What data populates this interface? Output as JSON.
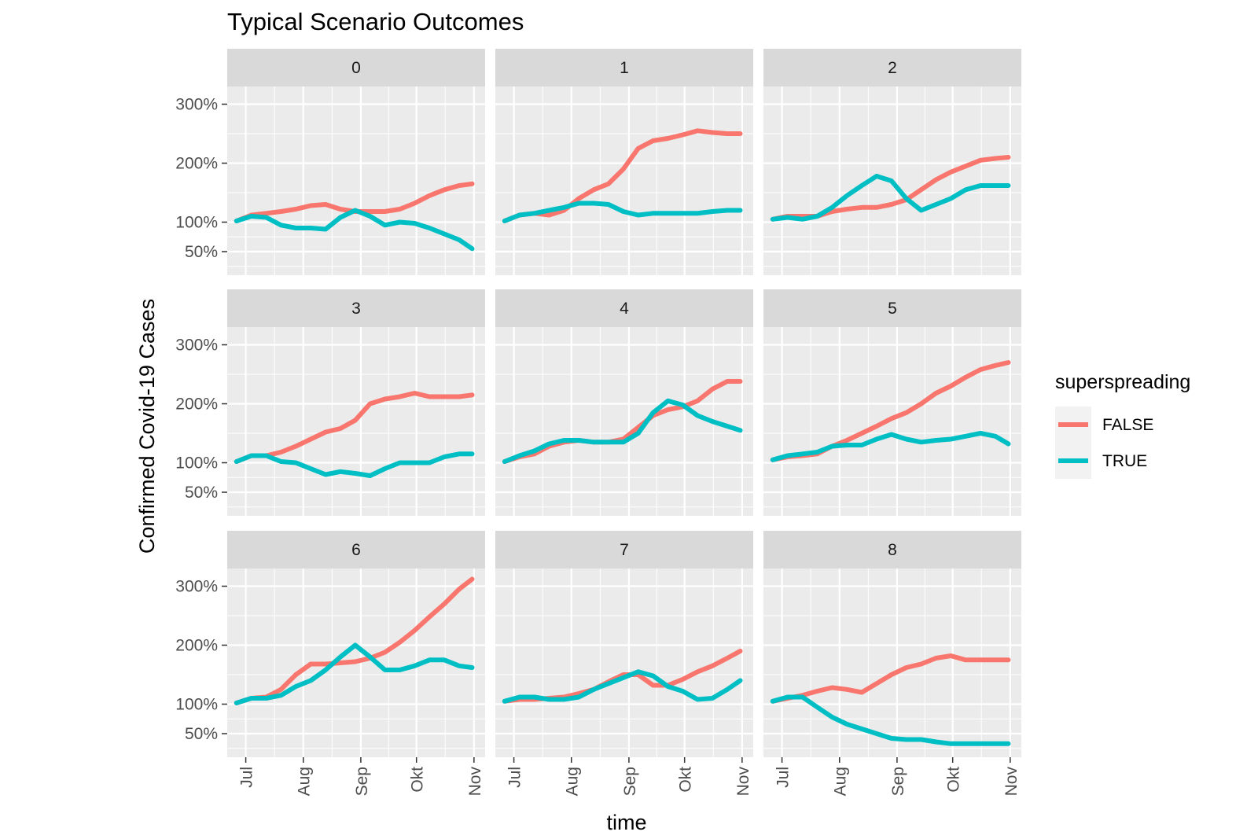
{
  "chart_data": {
    "type": "line",
    "title": "Typical Scenario Outcomes",
    "xlabel": "time",
    "ylabel": "Confirmed Covid-19 Cases",
    "facet_layout": "3x3",
    "x_ticks": [
      "Jul",
      "Aug",
      "Sep",
      "Okt",
      "Nov"
    ],
    "x_tick_dates": [
      "2020-07-01",
      "2020-08-01",
      "2020-09-01",
      "2020-10-01",
      "2020-11-01"
    ],
    "x_range": [
      "2020-06-21",
      "2020-11-07"
    ],
    "y_ticks": [
      50,
      100,
      200,
      300
    ],
    "y_tick_labels": [
      "50%",
      "100%",
      "200%",
      "300%"
    ],
    "y_range": [
      10,
      330
    ],
    "grid": true,
    "legend_position": "right",
    "legend": {
      "title": "superspreading",
      "entries": [
        {
          "label": "FALSE",
          "color": "#F8766D"
        },
        {
          "label": "TRUE",
          "color": "#00BFC4"
        }
      ]
    },
    "x_points": [
      "2020-06-26",
      "2020-07-04",
      "2020-07-12",
      "2020-07-20",
      "2020-07-28",
      "2020-08-05",
      "2020-08-13",
      "2020-08-21",
      "2020-08-29",
      "2020-09-06",
      "2020-09-14",
      "2020-09-22",
      "2020-09-30",
      "2020-10-08",
      "2020-10-16",
      "2020-10-24",
      "2020-10-31"
    ],
    "panels": [
      {
        "label": "0",
        "series": [
          {
            "name": "FALSE",
            "values": [
              102,
              112,
              115,
              118,
              122,
              128,
              130,
              122,
              118,
              118,
              118,
              122,
              132,
              145,
              155,
              162,
              165
            ]
          },
          {
            "name": "TRUE",
            "values": [
              102,
              110,
              108,
              95,
              90,
              90,
              88,
              108,
              120,
              110,
              95,
              100,
              98,
              90,
              80,
              70,
              55
            ]
          }
        ]
      },
      {
        "label": "1",
        "series": [
          {
            "name": "FALSE",
            "values": [
              102,
              112,
              115,
              112,
              120,
              140,
              155,
              165,
              190,
              225,
              238,
              242,
              248,
              255,
              252,
              250,
              250
            ]
          },
          {
            "name": "TRUE",
            "values": [
              102,
              112,
              115,
              120,
              125,
              132,
              132,
              130,
              118,
              112,
              115,
              115,
              115,
              115,
              118,
              120,
              120
            ]
          }
        ]
      },
      {
        "label": "2",
        "series": [
          {
            "name": "FALSE",
            "values": [
              105,
              110,
              110,
              110,
              118,
              122,
              125,
              125,
              130,
              138,
              155,
              172,
              185,
              195,
              205,
              208,
              210
            ]
          },
          {
            "name": "TRUE",
            "values": [
              105,
              108,
              105,
              110,
              125,
              145,
              162,
              178,
              170,
              140,
              120,
              130,
              140,
              155,
              162,
              162,
              162
            ]
          }
        ]
      },
      {
        "label": "3",
        "series": [
          {
            "name": "FALSE",
            "values": [
              102,
              112,
              112,
              118,
              128,
              140,
              152,
              158,
              172,
              200,
              208,
              212,
              218,
              212,
              212,
              212,
              215
            ]
          },
          {
            "name": "TRUE",
            "values": [
              102,
              112,
              112,
              102,
              100,
              90,
              80,
              85,
              82,
              78,
              90,
              100,
              100,
              100,
              110,
              115,
              115
            ]
          }
        ]
      },
      {
        "label": "4",
        "series": [
          {
            "name": "FALSE",
            "values": [
              102,
              110,
              115,
              128,
              135,
              138,
              135,
              135,
              140,
              160,
              180,
              190,
              195,
              205,
              225,
              238,
              238
            ]
          },
          {
            "name": "TRUE",
            "values": [
              102,
              112,
              120,
              132,
              138,
              138,
              135,
              135,
              135,
              150,
              185,
              205,
              198,
              180,
              170,
              162,
              155
            ]
          }
        ]
      },
      {
        "label": "5",
        "series": [
          {
            "name": "FALSE",
            "values": [
              105,
              110,
              112,
              115,
              128,
              138,
              150,
              162,
              175,
              185,
              200,
              218,
              230,
              245,
              258,
              265,
              270
            ]
          },
          {
            "name": "TRUE",
            "values": [
              105,
              112,
              115,
              118,
              128,
              130,
              130,
              140,
              148,
              140,
              135,
              138,
              140,
              145,
              150,
              145,
              132
            ]
          }
        ]
      },
      {
        "label": "6",
        "series": [
          {
            "name": "FALSE",
            "values": [
              102,
              110,
              112,
              125,
              150,
              168,
              168,
              170,
              172,
              178,
              188,
              205,
              225,
              248,
              270,
              295,
              312
            ]
          },
          {
            "name": "TRUE",
            "values": [
              102,
              110,
              110,
              115,
              130,
              140,
              158,
              180,
              200,
              180,
              158,
              158,
              165,
              175,
              175,
              165,
              162
            ]
          }
        ]
      },
      {
        "label": "7",
        "series": [
          {
            "name": "FALSE",
            "values": [
              105,
              108,
              108,
              110,
              112,
              118,
              125,
              138,
              150,
              150,
              132,
              132,
              142,
              155,
              165,
              178,
              190
            ]
          },
          {
            "name": "TRUE",
            "values": [
              105,
              112,
              112,
              108,
              108,
              112,
              125,
              135,
              145,
              155,
              148,
              130,
              122,
              108,
              110,
              125,
              140
            ]
          }
        ]
      },
      {
        "label": "8",
        "series": [
          {
            "name": "FALSE",
            "values": [
              105,
              110,
              115,
              122,
              128,
              125,
              120,
              135,
              150,
              162,
              168,
              178,
              182,
              175,
              175,
              175,
              175
            ]
          },
          {
            "name": "TRUE",
            "values": [
              105,
              112,
              112,
              95,
              78,
              66,
              58,
              50,
              42,
              40,
              40,
              36,
              33,
              33,
              33,
              33,
              33
            ]
          }
        ]
      }
    ]
  }
}
